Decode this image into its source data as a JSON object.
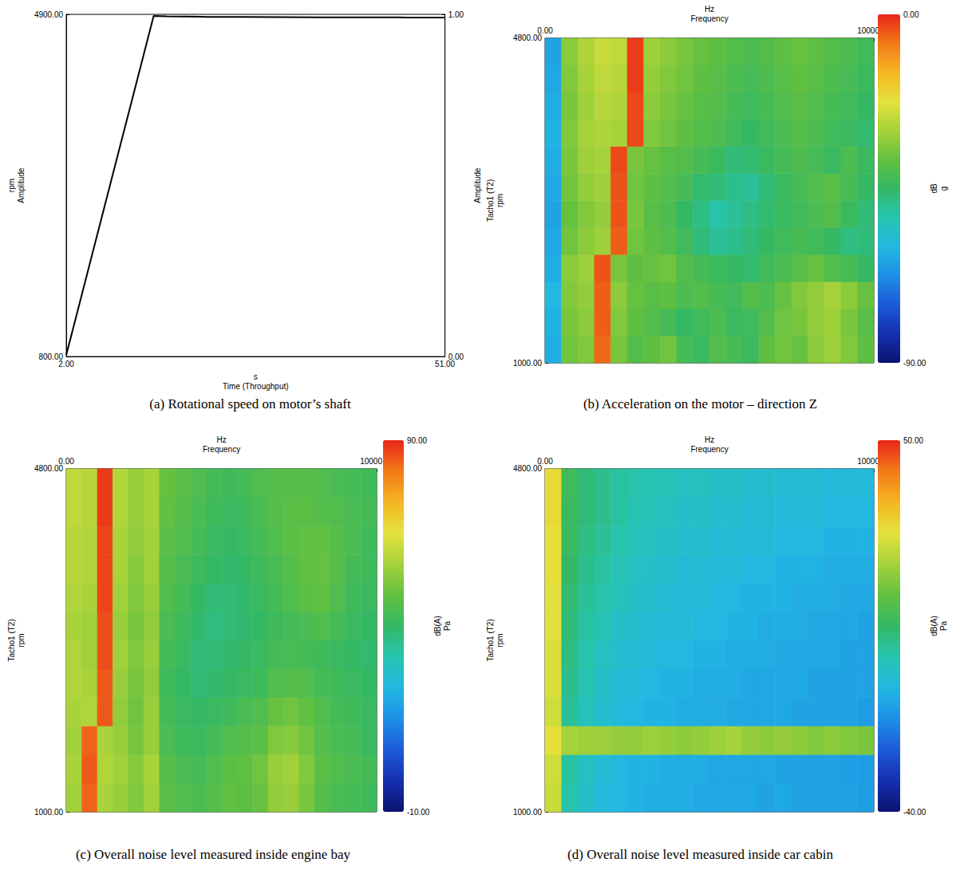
{
  "chart_data": [
    {
      "type": "line",
      "title": "(a) Rotational speed on motor’s shaft",
      "xlabel": [
        "s",
        "Time (Throughput)"
      ],
      "ylabel": [
        "rpm",
        "Amplitude"
      ],
      "y2label": [
        "Amplitude"
      ],
      "x": [
        2,
        3,
        5,
        7,
        9,
        11,
        13,
        13.3,
        15,
        20,
        25,
        30,
        35,
        40,
        45,
        51
      ],
      "values": [
        820,
        1179,
        1898,
        2616,
        3335,
        4053,
        4772,
        4880,
        4875,
        4870,
        4868,
        4866,
        4865,
        4864,
        4863,
        4862
      ],
      "color": "#000000",
      "xlim": [
        2,
        51
      ],
      "xticks": [
        {
          "value": 2,
          "label": "2.00"
        },
        {
          "value": 51,
          "label": "51.00"
        }
      ],
      "ylim": [
        800,
        4900
      ],
      "yticks": [
        {
          "value": 800,
          "label": "800.00"
        },
        {
          "value": 4900,
          "label": "4900.00"
        }
      ],
      "y2lim": [
        0,
        1
      ],
      "y2ticks": [
        {
          "value": 0,
          "label": "0.00"
        },
        {
          "value": 1,
          "label": "1.00"
        }
      ]
    },
    {
      "type": "heatmap",
      "title": "(b) Acceleration on the motor – direction Z",
      "xlabel": [
        "Hz",
        "Frequency"
      ],
      "ylabel": [
        "Tacho1 (T2)",
        "rpm"
      ],
      "xlim": [
        0,
        10000
      ],
      "xticks": [
        {
          "value": 0,
          "label": "0.00"
        },
        {
          "value": 10000,
          "label": "10000.00"
        }
      ],
      "ylim": [
        1000,
        4800
      ],
      "yticks": [
        {
          "value": 1000,
          "label": "1000.00"
        },
        {
          "value": 4800,
          "label": "4800.00"
        }
      ],
      "colorbar": {
        "label": [
          "dB",
          "g"
        ],
        "range": [
          -90,
          0
        ],
        "ticks": [
          {
            "value": -90,
            "label": "-90.00"
          },
          {
            "value": 0,
            "label": "0.00"
          }
        ]
      },
      "cells": [
        [
          -62,
          -36,
          -34,
          -6,
          -35,
          -40,
          -38,
          -36,
          -42,
          -44,
          -40,
          -42,
          -44,
          -38,
          -36,
          -37,
          -33,
          -31,
          -34,
          -38
        ],
        [
          -61,
          -35,
          -33,
          -5,
          -34,
          -38,
          -40,
          -42,
          -45,
          -43,
          -41,
          -44,
          -43,
          -40,
          -36,
          -35,
          -32,
          -31,
          -35,
          -39
        ],
        [
          -60,
          -34,
          -32,
          -5,
          -33,
          -37,
          -39,
          -38,
          -41,
          -40,
          -42,
          -43,
          -40,
          -41,
          -37,
          -34,
          -32,
          -30,
          -33,
          -37
        ],
        [
          -62,
          -33,
          -31,
          -4,
          -35,
          -38,
          -37,
          -36,
          -40,
          -42,
          -44,
          -45,
          -46,
          -43,
          -41,
          -39,
          -37,
          -40,
          -42,
          -45
        ],
        [
          -63,
          -36,
          -33,
          -31,
          -5,
          -36,
          -38,
          -40,
          -43,
          -47,
          -50,
          -49,
          -47,
          -45,
          -43,
          -42,
          -43,
          -45,
          -48,
          -47
        ],
        [
          -64,
          -37,
          -34,
          -32,
          -4,
          -35,
          -39,
          -41,
          -45,
          -48,
          -52,
          -50,
          -48,
          -46,
          -44,
          -43,
          -41,
          -40,
          -44,
          -47
        ],
        [
          -63,
          -36,
          -32,
          -31,
          -4,
          -36,
          -38,
          -40,
          -42,
          -46,
          -47,
          -49,
          -50,
          -47,
          -44,
          -42,
          -40,
          -39,
          -42,
          -45
        ],
        [
          -62,
          -35,
          -31,
          -30,
          -3,
          -35,
          -37,
          -39,
          -40,
          -42,
          -44,
          -47,
          -46,
          -44,
          -42,
          -41,
          -42,
          -44,
          -41,
          -44
        ],
        [
          -61,
          -34,
          -30,
          -29,
          -30,
          -3,
          -34,
          -36,
          -38,
          -40,
          -41,
          -43,
          -45,
          -43,
          -41,
          -40,
          -41,
          -43,
          -44,
          -46
        ],
        [
          -62,
          -35,
          -31,
          -28,
          -29,
          -3,
          -33,
          -35,
          -37,
          -39,
          -40,
          -42,
          -43,
          -42,
          -40,
          -39,
          -40,
          -42,
          -43,
          -45
        ],
        [
          -63,
          -34,
          -30,
          -27,
          -28,
          -2,
          -32,
          -34,
          -36,
          -38,
          -39,
          -41,
          -42,
          -41,
          -39,
          -38,
          -39,
          -41,
          -42,
          -44
        ],
        [
          -64,
          -33,
          -29,
          -26,
          -27,
          -2,
          -31,
          -33,
          -35,
          -37,
          -38,
          -40,
          -41,
          -40,
          -38,
          -37,
          -38,
          -40,
          -41,
          -43
        ]
      ]
    },
    {
      "type": "heatmap",
      "title": "(c) Overall noise level measured inside engine bay",
      "xlabel": [
        "Hz",
        "Frequency"
      ],
      "ylabel": [
        "Tacho1 (T2)",
        "rpm"
      ],
      "xlim": [
        0,
        10000
      ],
      "xticks": [
        {
          "value": 0,
          "label": "0.00"
        },
        {
          "value": 10000,
          "label": "10000.00"
        }
      ],
      "ylim": [
        1000,
        4800
      ],
      "yticks": [
        {
          "value": 1000,
          "label": "1000.00"
        },
        {
          "value": 4800,
          "label": "4800.00"
        }
      ],
      "colorbar": {
        "label": [
          "dB(A)",
          "Pa"
        ],
        "range": [
          -10,
          90
        ],
        "ticks": [
          {
            "value": -10,
            "label": "-10.00"
          },
          {
            "value": 90,
            "label": "90.00"
          }
        ]
      },
      "cells": [
        [
          56,
          84,
          57,
          55,
          52,
          56,
          47,
          45,
          44,
          46,
          48,
          47,
          49,
          54,
          55,
          51,
          46,
          44,
          43,
          42
        ],
        [
          57,
          85,
          58,
          56,
          53,
          57,
          46,
          44,
          43,
          45,
          47,
          48,
          50,
          55,
          56,
          52,
          47,
          45,
          44,
          43
        ],
        [
          56,
          84,
          57,
          55,
          51,
          55,
          44,
          42,
          41,
          43,
          45,
          46,
          47,
          52,
          53,
          50,
          46,
          44,
          43,
          41
        ],
        [
          57,
          58,
          85,
          54,
          50,
          55,
          43,
          41,
          40,
          41,
          42,
          44,
          45,
          49,
          50,
          48,
          45,
          43,
          42,
          41
        ],
        [
          58,
          57,
          85,
          55,
          51,
          54,
          42,
          40,
          38,
          39,
          40,
          41,
          42,
          45,
          46,
          45,
          43,
          42,
          41,
          40
        ],
        [
          58,
          56,
          86,
          56,
          52,
          55,
          43,
          41,
          38,
          38,
          39,
          40,
          41,
          43,
          44,
          43,
          42,
          41,
          40,
          39
        ],
        [
          57,
          56,
          86,
          55,
          51,
          54,
          44,
          42,
          39,
          37,
          38,
          39,
          40,
          42,
          43,
          44,
          45,
          43,
          41,
          40
        ],
        [
          58,
          57,
          87,
          56,
          52,
          55,
          45,
          43,
          40,
          38,
          38,
          39,
          41,
          43,
          45,
          47,
          48,
          45,
          42,
          41
        ],
        [
          59,
          58,
          87,
          57,
          53,
          56,
          46,
          44,
          42,
          40,
          39,
          40,
          42,
          44,
          46,
          48,
          49,
          46,
          43,
          42
        ],
        [
          59,
          58,
          87,
          57,
          54,
          56,
          47,
          45,
          43,
          41,
          40,
          41,
          43,
          45,
          47,
          48,
          48,
          46,
          44,
          42
        ],
        [
          60,
          59,
          88,
          58,
          55,
          57,
          48,
          46,
          44,
          42,
          41,
          42,
          44,
          46,
          47,
          47,
          46,
          45,
          44,
          43
        ],
        [
          60,
          59,
          88,
          58,
          55,
          57,
          49,
          47,
          45,
          43,
          42,
          43,
          45,
          46,
          46,
          46,
          45,
          44,
          43,
          42
        ]
      ]
    },
    {
      "type": "heatmap",
      "title": "(d) Overall noise level measured inside car cabin",
      "xlabel": [
        "Hz",
        "Frequency"
      ],
      "ylabel": [
        "Tacho1 (T2)",
        "rpm"
      ],
      "xlim": [
        0,
        10000
      ],
      "xticks": [
        {
          "value": 0,
          "label": "0.00"
        },
        {
          "value": 10000,
          "label": "10000.00"
        }
      ],
      "ylim": [
        1000,
        4800
      ],
      "yticks": [
        {
          "value": 1000,
          "label": "1000.00"
        },
        {
          "value": 4800,
          "label": "4800.00"
        }
      ],
      "colorbar": {
        "label": [
          "dB(A)",
          "Pa"
        ],
        "range": [
          -40,
          50
        ],
        "ticks": [
          {
            "value": -40,
            "label": "-40.00"
          },
          {
            "value": 50,
            "label": "50.00"
          }
        ]
      },
      "cells": [
        [
          24,
          -2,
          -6,
          -9,
          -10,
          -11,
          -12,
          -12,
          -12,
          -13,
          -13,
          -13,
          -13,
          -14,
          -13,
          -14,
          -14,
          -14,
          -14,
          -15
        ],
        [
          25,
          -1,
          -5,
          -8,
          -10,
          -11,
          -11,
          -12,
          -12,
          -12,
          -13,
          -13,
          -13,
          -13,
          -14,
          -14,
          -14,
          -14,
          -15,
          -15
        ],
        [
          28,
          20,
          19,
          19,
          18,
          18,
          19,
          18,
          17,
          18,
          19,
          20,
          18,
          17,
          18,
          17,
          16,
          17,
          16,
          15
        ],
        [
          25,
          0,
          -4,
          -7,
          -9,
          -10,
          -11,
          -11,
          -12,
          -12,
          -12,
          -13,
          -13,
          -13,
          -13,
          -14,
          -14,
          -14,
          -14,
          -15
        ],
        [
          26,
          1,
          -3,
          -6,
          -8,
          -9,
          -10,
          -11,
          -11,
          -12,
          -12,
          -12,
          -13,
          -13,
          -13,
          -13,
          -14,
          -14,
          -14,
          -14
        ],
        [
          26,
          2,
          -2,
          -5,
          -7,
          -8,
          -9,
          -10,
          -10,
          -11,
          -11,
          -12,
          -12,
          -12,
          -13,
          -13,
          -13,
          -13,
          -14,
          -14
        ],
        [
          27,
          3,
          -1,
          -3,
          -6,
          -7,
          -8,
          -9,
          -9,
          -10,
          -10,
          -11,
          -11,
          -12,
          -12,
          -12,
          -13,
          -13,
          -13,
          -14
        ],
        [
          27,
          4,
          0,
          -2,
          -4,
          -6,
          -7,
          -8,
          -9,
          -9,
          -10,
          -10,
          -11,
          -11,
          -11,
          -12,
          -12,
          -12,
          -13,
          -13
        ],
        [
          28,
          5,
          1,
          -1,
          -3,
          -5,
          -6,
          -7,
          -8,
          -8,
          -9,
          -9,
          -10,
          -10,
          -11,
          -11,
          -11,
          -12,
          -12,
          -12
        ],
        [
          28,
          6,
          2,
          0,
          -2,
          -4,
          -5,
          -6,
          -7,
          -7,
          -8,
          -8,
          -9,
          -9,
          -10,
          -10,
          -10,
          -11,
          -11,
          -11
        ],
        [
          29,
          6,
          3,
          1,
          -1,
          -3,
          -4,
          -5,
          -6,
          -6,
          -7,
          -7,
          -8,
          -8,
          -9,
          -9,
          -9,
          -10,
          -10,
          -10
        ],
        [
          29,
          7,
          3,
          1,
          -1,
          -2,
          -3,
          -4,
          -5,
          -5,
          -6,
          -6,
          -7,
          -7,
          -8,
          -8,
          -8,
          -9,
          -9,
          -9
        ]
      ]
    }
  ]
}
